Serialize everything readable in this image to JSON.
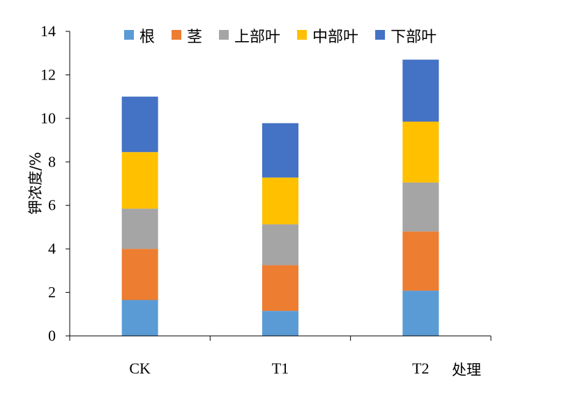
{
  "chart_data": {
    "type": "bar",
    "stacked": true,
    "categories": [
      "CK",
      "T1",
      "T2"
    ],
    "series": [
      {
        "name": "根",
        "color": "#5B9BD5",
        "values": [
          1.65,
          1.15,
          2.08
        ]
      },
      {
        "name": "茎",
        "color": "#ED7D31",
        "values": [
          2.35,
          2.1,
          2.72
        ]
      },
      {
        "name": "上部叶",
        "color": "#A5A5A5",
        "values": [
          1.85,
          1.88,
          2.25
        ]
      },
      {
        "name": "中部叶",
        "color": "#FFC000",
        "values": [
          2.6,
          2.15,
          2.8
        ]
      },
      {
        "name": "下部叶",
        "color": "#4472C4",
        "values": [
          2.55,
          2.5,
          2.85
        ]
      }
    ],
    "xlabel": "处理",
    "ylabel": "钾浓度/%",
    "ylim": [
      0,
      14
    ],
    "yticks": [
      0,
      2,
      4,
      6,
      8,
      10,
      12,
      14
    ],
    "grid": false,
    "legend_position": "top"
  }
}
